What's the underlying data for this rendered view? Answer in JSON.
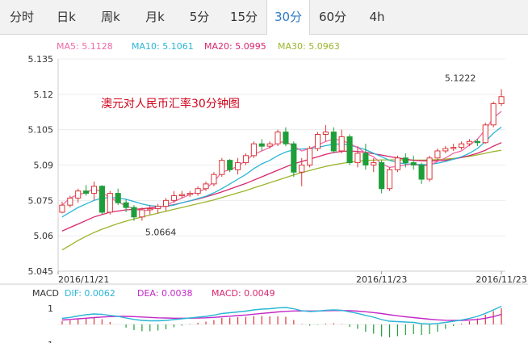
{
  "tabs": [
    "分时",
    "日k",
    "周k",
    "月k",
    "5分",
    "15分",
    "30分",
    "60分",
    "4h"
  ],
  "active_tab": "30分",
  "colors": {
    "up": "#d9383a",
    "down": "#1e9e3a",
    "ma5": "#f06aa7",
    "ma10": "#2ab6d6",
    "ma20": "#d8266e",
    "ma30": "#9ab52a",
    "dif": "#2ab6d6",
    "dea": "#c328c8",
    "macd": "#d8266e"
  },
  "legend": {
    "ma5": "MA5: 5.1128",
    "ma10": "MA10: 5.1061",
    "ma20": "MA20: 5.0995",
    "ma30": "MA30: 5.0963"
  },
  "macd_legend": {
    "label": "MACD",
    "dif": "DIF: 0.0062",
    "dea": "DEA: 0.0038",
    "macd": "MACD: 0.0049",
    "tick_top": "1",
    "tick_bottom": "-1"
  },
  "chart_data": {
    "type": "candlestick",
    "title": "澳元对人民币汇率30分钟图",
    "y_ticks": [
      "5.135",
      "5.12",
      "5.105",
      "5.09",
      "5.075",
      "5.06",
      "5.045"
    ],
    "ylim": [
      5.045,
      5.135
    ],
    "x_labels": [
      {
        "index": 0,
        "text": "2016/11/21"
      },
      {
        "index": 40,
        "text": "2016/11/23"
      },
      {
        "index": 55,
        "text": "2016/11/23"
      }
    ],
    "annotations": [
      {
        "index": 10,
        "price": 5.0664,
        "text": "5.0664"
      },
      {
        "index": 52,
        "price": 5.1222,
        "text": "5.1222"
      }
    ],
    "candles": [
      [
        5.07,
        5.0745,
        5.0695,
        5.073
      ],
      [
        5.073,
        5.077,
        5.072,
        5.076
      ],
      [
        5.076,
        5.08,
        5.074,
        5.079
      ],
      [
        5.079,
        5.0815,
        5.077,
        5.078
      ],
      [
        5.078,
        5.083,
        5.075,
        5.081
      ],
      [
        5.081,
        5.0815,
        5.069,
        5.07
      ],
      [
        5.07,
        5.079,
        5.069,
        5.078
      ],
      [
        5.078,
        5.08,
        5.073,
        5.074
      ],
      [
        5.074,
        5.0755,
        5.07,
        5.072
      ],
      [
        5.072,
        5.073,
        5.0664,
        5.068
      ],
      [
        5.068,
        5.072,
        5.0664,
        5.071
      ],
      [
        5.071,
        5.073,
        5.069,
        5.0715
      ],
      [
        5.0715,
        5.0735,
        5.0695,
        5.0725
      ],
      [
        5.0725,
        5.076,
        5.0705,
        5.075
      ],
      [
        5.075,
        5.079,
        5.074,
        5.077
      ],
      [
        5.077,
        5.079,
        5.076,
        5.0775
      ],
      [
        5.0775,
        5.079,
        5.0765,
        5.078
      ],
      [
        5.078,
        5.081,
        5.077,
        5.08
      ],
      [
        5.08,
        5.083,
        5.079,
        5.082
      ],
      [
        5.082,
        5.087,
        5.081,
        5.086
      ],
      [
        5.086,
        5.093,
        5.085,
        5.092
      ],
      [
        5.092,
        5.0925,
        5.087,
        5.088
      ],
      [
        5.088,
        5.093,
        5.086,
        5.091
      ],
      [
        5.091,
        5.095,
        5.09,
        5.094
      ],
      [
        5.094,
        5.1,
        5.093,
        5.099
      ],
      [
        5.099,
        5.101,
        5.096,
        5.098
      ],
      [
        5.098,
        5.1,
        5.097,
        5.099
      ],
      [
        5.099,
        5.105,
        5.098,
        5.104
      ],
      [
        5.104,
        5.106,
        5.098,
        5.099
      ],
      [
        5.099,
        5.1,
        5.085,
        5.087
      ],
      [
        5.087,
        5.093,
        5.081,
        5.09
      ],
      [
        5.09,
        5.098,
        5.089,
        5.097
      ],
      [
        5.097,
        5.104,
        5.096,
        5.103
      ],
      [
        5.103,
        5.107,
        5.1,
        5.104
      ],
      [
        5.104,
        5.106,
        5.095,
        5.096
      ],
      [
        5.096,
        5.105,
        5.095,
        5.102
      ],
      [
        5.102,
        5.103,
        5.09,
        5.091
      ],
      [
        5.091,
        5.098,
        5.089,
        5.095
      ],
      [
        5.095,
        5.099,
        5.088,
        5.09
      ],
      [
        5.09,
        5.093,
        5.087,
        5.091
      ],
      [
        5.091,
        5.092,
        5.078,
        5.08
      ],
      [
        5.08,
        5.089,
        5.079,
        5.088
      ],
      [
        5.088,
        5.094,
        5.087,
        5.093
      ],
      [
        5.093,
        5.095,
        5.089,
        5.091
      ],
      [
        5.091,
        5.094,
        5.088,
        5.09
      ],
      [
        5.09,
        5.091,
        5.082,
        5.084
      ],
      [
        5.084,
        5.094,
        5.083,
        5.093
      ],
      [
        5.093,
        5.097,
        5.092,
        5.096
      ],
      [
        5.096,
        5.098,
        5.095,
        5.097
      ],
      [
        5.097,
        5.099,
        5.096,
        5.0975
      ],
      [
        5.0975,
        5.1,
        5.0965,
        5.099
      ],
      [
        5.099,
        5.101,
        5.098,
        5.1
      ],
      [
        5.1,
        5.101,
        5.098,
        5.0995
      ],
      [
        5.0995,
        5.108,
        5.099,
        5.107
      ],
      [
        5.107,
        5.117,
        5.106,
        5.116
      ],
      [
        5.116,
        5.1222,
        5.115,
        5.119
      ]
    ],
    "ma5": [
      5.073,
      5.076,
      5.0775,
      5.0782,
      5.08,
      5.0785,
      5.076,
      5.0745,
      5.0725,
      5.0715,
      5.0705,
      5.071,
      5.072,
      5.073,
      5.0745,
      5.076,
      5.0775,
      5.0785,
      5.08,
      5.083,
      5.087,
      5.088,
      5.0895,
      5.092,
      5.0945,
      5.096,
      5.0975,
      5.0995,
      5.1,
      5.098,
      5.096,
      5.097,
      5.0985,
      5.1,
      5.101,
      5.1005,
      5.099,
      5.0975,
      5.095,
      5.0935,
      5.0905,
      5.089,
      5.0895,
      5.09,
      5.0905,
      5.0895,
      5.09,
      5.0915,
      5.093,
      5.095,
      5.096,
      5.0985,
      5.101,
      5.105,
      5.11,
      5.1128
    ],
    "ma10": [
      5.068,
      5.07,
      5.072,
      5.0735,
      5.075,
      5.076,
      5.0762,
      5.076,
      5.0755,
      5.0745,
      5.0735,
      5.0728,
      5.0725,
      5.0725,
      5.073,
      5.074,
      5.0748,
      5.0758,
      5.0768,
      5.0782,
      5.08,
      5.082,
      5.084,
      5.086,
      5.0885,
      5.0905,
      5.092,
      5.094,
      5.0955,
      5.0965,
      5.0968,
      5.097,
      5.0975,
      5.0982,
      5.0988,
      5.099,
      5.0985,
      5.0975,
      5.0965,
      5.095,
      5.0935,
      5.092,
      5.091,
      5.0905,
      5.0903,
      5.0902,
      5.0903,
      5.0908,
      5.0915,
      5.0925,
      5.0935,
      5.095,
      5.097,
      5.1,
      5.1035,
      5.1061
    ],
    "ma20": [
      5.062,
      5.0635,
      5.065,
      5.0665,
      5.068,
      5.069,
      5.07,
      5.0705,
      5.071,
      5.0712,
      5.0715,
      5.0718,
      5.0722,
      5.0726,
      5.0732,
      5.074,
      5.0748,
      5.0756,
      5.0765,
      5.0775,
      5.0786,
      5.0798,
      5.081,
      5.0822,
      5.0836,
      5.085,
      5.0864,
      5.0878,
      5.0892,
      5.0905,
      5.0915,
      5.0925,
      5.0935,
      5.0945,
      5.0953,
      5.0958,
      5.096,
      5.0958,
      5.0954,
      5.0948,
      5.0942,
      5.0936,
      5.093,
      5.0925,
      5.092,
      5.0918,
      5.0917,
      5.0918,
      5.092,
      5.0925,
      5.0932,
      5.094,
      5.095,
      5.0963,
      5.098,
      5.0995
    ],
    "ma30": [
      5.054,
      5.056,
      5.058,
      5.0598,
      5.0614,
      5.0628,
      5.064,
      5.0652,
      5.0662,
      5.0671,
      5.068,
      5.0688,
      5.0696,
      5.0704,
      5.0712,
      5.072,
      5.0728,
      5.0736,
      5.0744,
      5.0752,
      5.0762,
      5.0772,
      5.0782,
      5.0792,
      5.0803,
      5.0814,
      5.0825,
      5.0836,
      5.0847,
      5.0858,
      5.0868,
      5.0877,
      5.0886,
      5.0894,
      5.0901,
      5.0907,
      5.0912,
      5.0916,
      5.0919,
      5.0921,
      5.0922,
      5.0922,
      5.0922,
      5.0922,
      5.0921,
      5.0921,
      5.0922,
      5.0923,
      5.0925,
      5.0928,
      5.0932,
      5.0937,
      5.0943,
      5.095,
      5.0957,
      5.0963
    ],
    "macd_dif": [
      0.3,
      0.35,
      0.42,
      0.48,
      0.52,
      0.5,
      0.45,
      0.4,
      0.32,
      0.25,
      0.2,
      0.18,
      0.18,
      0.2,
      0.24,
      0.28,
      0.32,
      0.36,
      0.4,
      0.46,
      0.54,
      0.58,
      0.62,
      0.66,
      0.72,
      0.76,
      0.78,
      0.82,
      0.84,
      0.78,
      0.68,
      0.64,
      0.66,
      0.7,
      0.72,
      0.7,
      0.62,
      0.55,
      0.45,
      0.36,
      0.24,
      0.16,
      0.14,
      0.12,
      0.1,
      0.04,
      0.02,
      0.05,
      0.1,
      0.16,
      0.22,
      0.3,
      0.4,
      0.55,
      0.72,
      0.9
    ],
    "macd_dea": [
      0.22,
      0.25,
      0.28,
      0.31,
      0.34,
      0.37,
      0.39,
      0.4,
      0.4,
      0.39,
      0.37,
      0.35,
      0.33,
      0.32,
      0.31,
      0.31,
      0.31,
      0.32,
      0.33,
      0.35,
      0.38,
      0.41,
      0.44,
      0.47,
      0.51,
      0.55,
      0.58,
      0.62,
      0.65,
      0.67,
      0.67,
      0.67,
      0.67,
      0.68,
      0.69,
      0.69,
      0.68,
      0.66,
      0.63,
      0.59,
      0.54,
      0.48,
      0.43,
      0.38,
      0.34,
      0.3,
      0.26,
      0.23,
      0.21,
      0.2,
      0.2,
      0.22,
      0.25,
      0.31,
      0.39,
      0.5
    ],
    "macd_bar": [
      0.16,
      0.2,
      0.28,
      0.34,
      0.36,
      0.26,
      0.12,
      0.0,
      -0.16,
      -0.28,
      -0.34,
      -0.34,
      -0.3,
      -0.24,
      -0.14,
      -0.06,
      0.02,
      0.08,
      0.14,
      0.22,
      0.32,
      0.34,
      0.36,
      0.38,
      0.42,
      0.42,
      0.4,
      0.4,
      0.38,
      0.22,
      0.02,
      -0.06,
      -0.02,
      0.04,
      0.06,
      0.02,
      -0.12,
      -0.22,
      -0.36,
      -0.46,
      -0.6,
      -0.64,
      -0.58,
      -0.52,
      -0.48,
      -0.52,
      -0.48,
      -0.36,
      -0.22,
      -0.08,
      0.04,
      0.16,
      0.3,
      0.48,
      0.66,
      0.8
    ]
  }
}
